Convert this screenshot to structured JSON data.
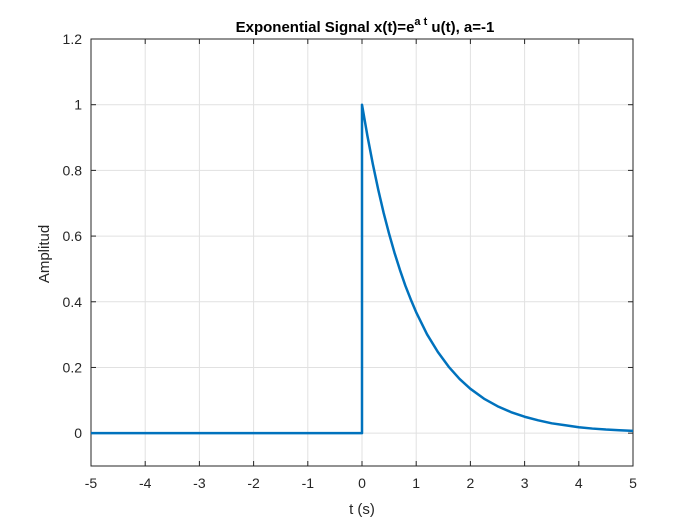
{
  "chart_data": {
    "type": "line",
    "title": {
      "prefix": "Exponential Signal x(t)=e",
      "superscript": "a t",
      "suffix": " u(t), a=-1"
    },
    "xlabel": "t (s)",
    "ylabel": "Amplitud",
    "xlim": [
      -5,
      5
    ],
    "ylim": [
      -0.1,
      1.2
    ],
    "xticks": [
      -5,
      -4,
      -3,
      -2,
      -1,
      0,
      1,
      2,
      3,
      4,
      5
    ],
    "xtick_labels": [
      "-5",
      "-4",
      "-3",
      "-2",
      "-1",
      "0",
      "1",
      "2",
      "3",
      "4",
      "5"
    ],
    "yticks": [
      0,
      0.2,
      0.4,
      0.6,
      0.8,
      1,
      1.2
    ],
    "ytick_labels": [
      "0",
      "0.2",
      "0.4",
      "0.6",
      "0.8",
      "1",
      "1.2"
    ],
    "grid": true,
    "series": [
      {
        "color": "#0072BD",
        "x": [
          -5,
          -4,
          -3,
          -2,
          -1,
          0,
          0,
          0.1,
          0.2,
          0.3,
          0.4,
          0.5,
          0.6,
          0.7,
          0.8,
          0.9,
          1.0,
          1.2,
          1.4,
          1.6,
          1.8,
          2.0,
          2.25,
          2.5,
          2.75,
          3.0,
          3.25,
          3.5,
          3.75,
          4.0,
          4.25,
          4.5,
          4.75,
          5.0
        ],
        "y": [
          0,
          0,
          0,
          0,
          0,
          0,
          1,
          0.905,
          0.819,
          0.741,
          0.67,
          0.607,
          0.549,
          0.497,
          0.449,
          0.407,
          0.368,
          0.301,
          0.247,
          0.202,
          0.165,
          0.135,
          0.105,
          0.082,
          0.064,
          0.05,
          0.039,
          0.03,
          0.024,
          0.018,
          0.014,
          0.011,
          0.009,
          0.007
        ]
      }
    ]
  }
}
